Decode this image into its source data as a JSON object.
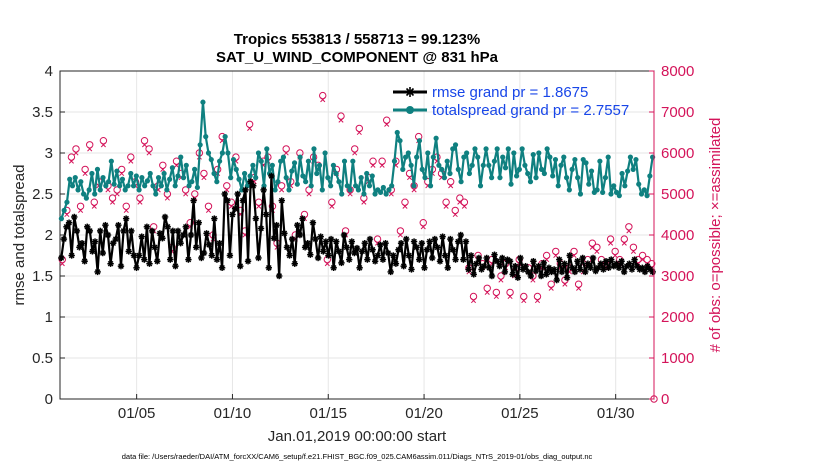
{
  "chart_data": {
    "type": "line",
    "title_line1": "Tropics 553813 / 558713 = 99.123%",
    "title_line2": "SAT_U_WIND_COMPONENT @ 831 hPa",
    "xlabel": "Jan.01,2019 00:00:00 start",
    "ylabel_left": "rmse and totalspread",
    "ylabel_right": "# of obs: o=possible; ×=assimilated",
    "footnote": "data file: /Users/raeder/DAI/ATM_forcXX/CAM6_setup/f.e21.FHIST_BGC.f09_025.CAM6assim.011/Diags_NTrS_2019-01/obs_diag_output.nc",
    "xlim": [
      1,
      32
    ],
    "ylim_left": [
      0,
      4
    ],
    "ylim_right": [
      0,
      8000
    ],
    "x_tick_values": [
      5,
      10,
      15,
      20,
      25,
      30
    ],
    "x_tick_labels": [
      "01/05",
      "01/10",
      "01/15",
      "01/20",
      "01/25",
      "01/30"
    ],
    "y_left_ticks": [
      "0",
      "0.5",
      "1",
      "1.5",
      "2",
      "2.5",
      "3",
      "3.5",
      "4"
    ],
    "y_right_ticks": [
      "0",
      "1000",
      "2000",
      "3000",
      "4000",
      "5000",
      "6000",
      "7000",
      "8000"
    ],
    "legend": [
      "rmse grand pr = 1.8675",
      "totalspread grand pr = 2.7557"
    ],
    "colors": {
      "rmse": "#000000",
      "spread": "#0f8080",
      "obs": "#d4145a",
      "legend_text": "#1846e8",
      "grid": "#e6e6e6",
      "axis": "#262626"
    },
    "series": [
      {
        "name": "rmse",
        "axis": "left",
        "values": [
          1.72,
          1.95,
          2.1,
          2.15,
          1.75,
          2.22,
          2.05,
          1.85,
          1.9,
          1.68,
          2.1,
          2.05,
          1.8,
          1.92,
          1.55,
          2.05,
          1.78,
          2.12,
          2.0,
          1.65,
          1.9,
          1.95,
          2.12,
          1.62,
          2.05,
          2.2,
          1.8,
          2.05,
          1.75,
          1.6,
          1.75,
          1.98,
          1.7,
          2.1,
          1.65,
          2.05,
          1.85,
          1.68,
          2.02,
          1.96,
          2.22,
          2.1,
          1.7,
          2.05,
          1.62,
          2.05,
          1.9,
          2.0,
          2.1,
          1.7,
          2.0,
          2.42,
          1.85,
          2.15,
          1.72,
          1.78,
          2.02,
          1.88,
          1.75,
          2.2,
          1.7,
          1.9,
          1.6,
          2.5,
          2.42,
          1.75,
          2.25,
          2.32,
          2.5,
          1.62,
          2.42,
          2.55,
          1.68,
          2.65,
          2.6,
          2.2,
          1.72,
          2.08,
          2.55,
          2.25,
          1.6,
          2.72,
          1.96,
          2.12,
          1.5,
          2.42,
          2.02,
          1.85,
          1.75,
          1.95,
          1.65,
          2.12,
          2.0,
          2.2,
          1.85,
          1.9,
          1.76,
          2.15,
          1.95,
          1.72,
          1.98,
          1.8,
          1.92,
          1.75,
          1.95,
          1.6,
          1.92,
          1.8,
          1.66,
          2.0,
          1.85,
          1.7,
          1.92,
          1.78,
          1.84,
          1.6,
          1.8,
          1.9,
          1.7,
          1.95,
          1.82,
          1.68,
          1.75,
          1.88,
          1.7,
          1.9,
          1.78,
          1.55,
          1.75,
          1.65,
          1.82,
          1.9,
          1.62,
          1.95,
          1.75,
          1.58,
          1.92,
          1.85,
          1.7,
          1.9,
          1.6,
          1.82,
          1.92,
          1.72,
          1.95,
          1.85,
          1.68,
          1.98,
          1.75,
          1.6,
          1.95,
          1.82,
          1.7,
          1.92,
          2.0,
          1.7,
          1.92,
          1.58,
          1.75,
          1.52,
          1.65,
          1.72,
          1.58,
          1.62,
          1.72,
          1.6,
          1.5,
          1.76,
          1.68,
          1.62,
          1.72,
          1.55,
          1.7,
          1.68,
          1.52,
          1.62,
          1.48,
          1.72,
          1.58,
          1.62,
          1.55,
          1.5,
          1.68,
          1.56,
          1.62,
          1.5,
          1.66,
          1.52,
          1.6,
          1.55,
          1.58,
          1.45,
          1.7,
          1.55,
          1.65,
          1.48,
          1.75,
          1.6,
          1.55,
          1.68,
          1.58,
          1.72,
          1.55,
          1.65,
          1.6,
          1.72,
          1.56,
          1.6,
          1.65,
          1.58,
          1.68,
          1.6,
          1.7,
          1.62,
          1.65,
          1.6,
          1.68,
          1.55,
          1.62,
          1.65,
          1.58,
          1.7,
          1.62,
          1.58,
          1.6,
          1.55,
          1.62,
          1.58,
          1.55
        ]
      },
      {
        "name": "totalspread",
        "axis": "left",
        "values": [
          2.2,
          2.3,
          2.4,
          2.68,
          2.6,
          2.7,
          2.55,
          2.65,
          2.5,
          2.45,
          2.55,
          2.75,
          2.5,
          2.8,
          2.55,
          2.7,
          2.6,
          2.65,
          2.9,
          2.62,
          2.78,
          2.6,
          2.68,
          2.55,
          2.6,
          2.75,
          2.6,
          2.72,
          2.55,
          2.7,
          2.6,
          2.66,
          2.75,
          2.6,
          2.5,
          2.7,
          2.6,
          2.75,
          2.55,
          2.68,
          2.82,
          2.6,
          2.72,
          2.95,
          2.7,
          2.85,
          2.6,
          2.65,
          2.8,
          2.58,
          3.1,
          3.62,
          3.2,
          3.0,
          2.92,
          2.75,
          2.65,
          2.9,
          3.0,
          3.2,
          3.0,
          2.7,
          2.92,
          2.8,
          2.68,
          2.55,
          2.75,
          2.6,
          2.72,
          2.85,
          2.7,
          3.0,
          2.9,
          2.6,
          3.05,
          2.75,
          2.85,
          2.55,
          2.65,
          2.9,
          2.95,
          2.7,
          2.55,
          2.78,
          2.88,
          2.62,
          2.95,
          2.72,
          2.65,
          2.9,
          2.6,
          3.05,
          2.75,
          2.85,
          2.55,
          3.0,
          2.7,
          2.6,
          2.85,
          2.75,
          2.65,
          2.5,
          2.9,
          2.6,
          2.55,
          2.9,
          2.6,
          2.55,
          2.7,
          2.5,
          2.75,
          2.6,
          2.72,
          2.5,
          2.55,
          2.52,
          2.58,
          2.5,
          2.55,
          2.6,
          2.9,
          3.25,
          3.15,
          2.8,
          2.95,
          3.0,
          2.85,
          2.6,
          2.95,
          3.15,
          2.8,
          2.7,
          3.0,
          2.6,
          2.95,
          3.18,
          2.85,
          2.8,
          2.7,
          2.9,
          2.75,
          3.05,
          3.1,
          2.8,
          2.65,
          2.95,
          3.0,
          2.75,
          2.85,
          3.05,
          2.95,
          2.6,
          2.85,
          3.05,
          2.85,
          2.7,
          2.9,
          3.05,
          2.7,
          2.95,
          2.82,
          3.05,
          2.62,
          3.0,
          2.72,
          2.8,
          3.05,
          2.85,
          2.75,
          2.65,
          2.98,
          2.7,
          3.0,
          2.8,
          2.75,
          3.05,
          2.95,
          2.72,
          2.92,
          2.6,
          2.85,
          2.95,
          2.7,
          2.55,
          2.8,
          2.92,
          2.7,
          2.5,
          2.92,
          2.88,
          2.62,
          2.78,
          2.52,
          2.55,
          2.9,
          2.52,
          2.7,
          2.95,
          2.5,
          2.6,
          2.52,
          2.48,
          2.75,
          2.6,
          2.78,
          2.95,
          2.8,
          2.92,
          2.62,
          2.5,
          2.55,
          2.48,
          2.72,
          2.95
        ]
      },
      {
        "name": "obs_possible",
        "axis": "right",
        "values": [
          3400,
          4600,
          5900,
          6100,
          4700,
          5600,
          6200,
          4800,
          5300,
          6300,
          5200,
          4900,
          5100,
          5600,
          4700,
          5900,
          5300,
          4900,
          6300,
          6100,
          4200,
          5200,
          5700,
          5000,
          3700,
          5800,
          5500,
          5100,
          4300,
          5000,
          6000,
          5500,
          4700,
          4000,
          5600,
          6400,
          5200,
          4800,
          5900,
          4600,
          4100,
          6700,
          5400,
          4800,
          5800,
          5900,
          4700,
          3800,
          5200,
          6100,
          5300,
          4000,
          6000,
          4500,
          5100,
          5900,
          5700,
          7400,
          3400,
          4800,
          5600,
          6900,
          4100,
          5100,
          6100,
          6600,
          4900,
          5400,
          5800,
          3900,
          5800,
          6800,
          5100,
          5800,
          4100,
          4800,
          5500,
          5200,
          6400,
          4300,
          5300,
          5600,
          5900,
          5500,
          4800,
          5300,
          4600,
          4900,
          4800,
          3200,
          2500,
          3500,
          3300,
          2700,
          3400,
          2600,
          3000,
          3300,
          2600,
          3100,
          3400,
          2500,
          3200,
          3000,
          2500,
          3300,
          3500,
          2800,
          3600,
          3300,
          2900,
          3200,
          3600,
          2800,
          3200,
          3400,
          3800,
          3700,
          3400,
          3300,
          3900,
          3600,
          3400,
          3900,
          4200,
          3700,
          3400,
          3500,
          3400,
          3300
        ]
      },
      {
        "name": "obs_assimilated",
        "axis": "right",
        "values": [
          3300,
          4500,
          5800,
          6000,
          4600,
          5500,
          6100,
          4700,
          5200,
          6200,
          5100,
          4800,
          5000,
          5500,
          4600,
          5800,
          5200,
          4800,
          6200,
          6000,
          4100,
          5100,
          5600,
          4900,
          3600,
          5700,
          5400,
          5000,
          4200,
          4900,
          5900,
          5400,
          4600,
          3900,
          5500,
          6300,
          5100,
          4700,
          5800,
          4500,
          4000,
          6600,
          5300,
          4700,
          5700,
          5800,
          4600,
          3700,
          5100,
          6000,
          5200,
          3900,
          5900,
          4400,
          5000,
          5800,
          5600,
          7300,
          3300,
          4700,
          5500,
          6800,
          4000,
          5000,
          6000,
          6500,
          4800,
          5300,
          5700,
          3800,
          5700,
          6700,
          5000,
          5700,
          4000,
          4700,
          5400,
          5100,
          6300,
          4200,
          5200,
          5500,
          5800,
          5400,
          4700,
          5200,
          4500,
          4800,
          4700,
          3100,
          2400,
          3400,
          3200,
          2600,
          3300,
          2500,
          2900,
          3200,
          2500,
          3000,
          3300,
          2400,
          3100,
          2900,
          2400,
          3200,
          3400,
          2700,
          3500,
          3200,
          2800,
          3100,
          3500,
          2700,
          3100,
          3300,
          3700,
          3600,
          3300,
          3200,
          3800,
          3500,
          3300,
          3800,
          4100,
          3600,
          3300,
          3400,
          3300,
          3200
        ]
      }
    ]
  }
}
